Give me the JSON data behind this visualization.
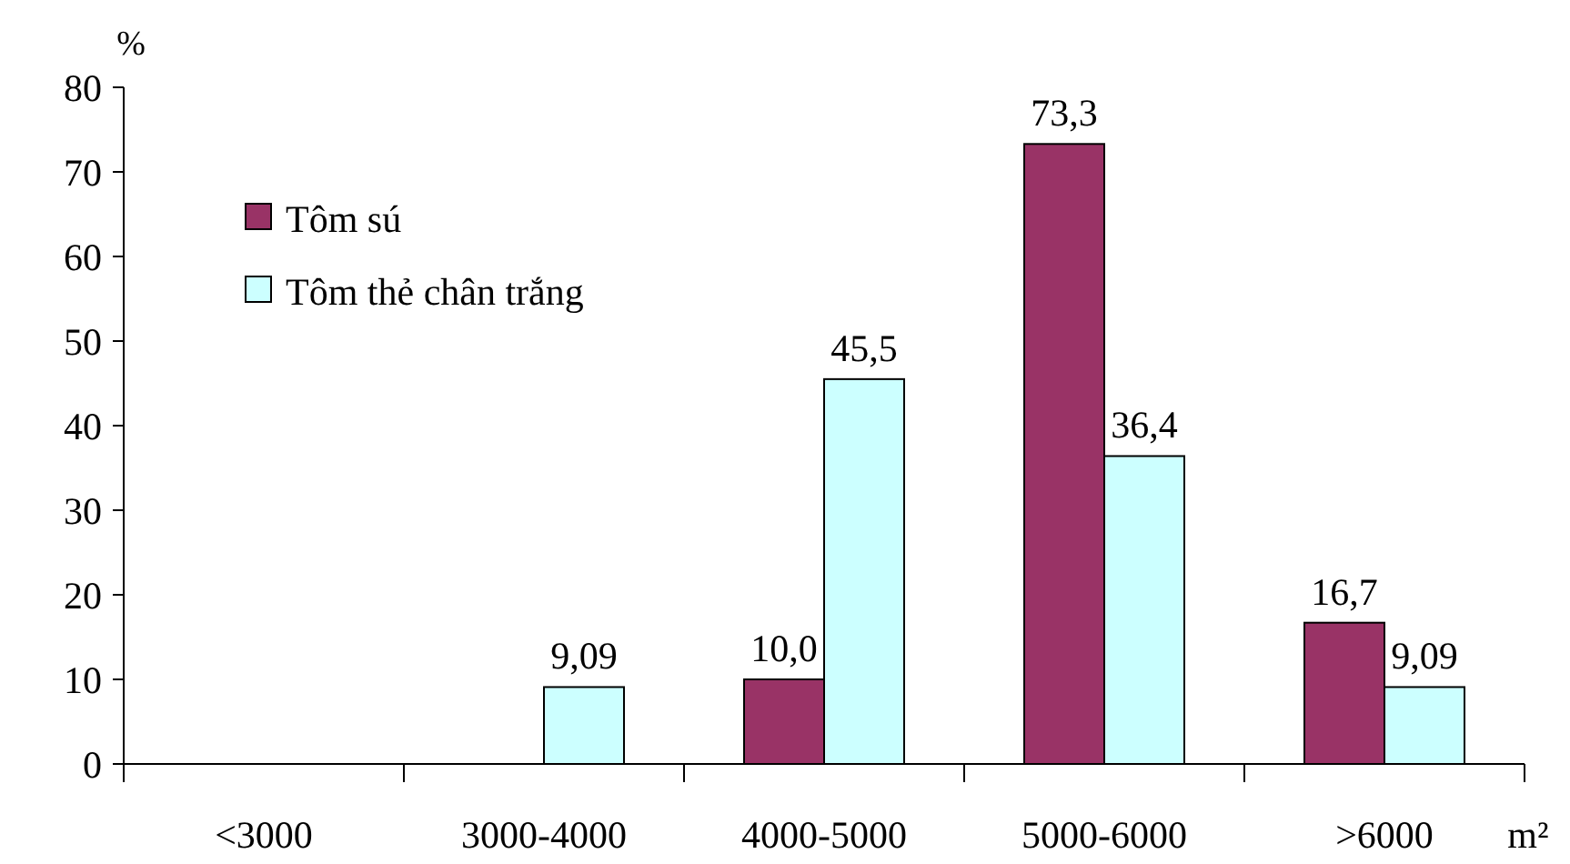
{
  "chart_data": {
    "type": "bar",
    "ylabel": "%",
    "xlabel": "m²",
    "categories": [
      "<3000",
      "3000-4000",
      "4000-5000",
      "5000-6000",
      ">6000"
    ],
    "series": [
      {
        "name": "Tôm sú",
        "color": "#993366",
        "values": [
          null,
          null,
          10.0,
          73.3,
          16.7
        ],
        "value_labels": [
          null,
          null,
          "10,0",
          "73,3",
          "16,7"
        ]
      },
      {
        "name": "Tôm thẻ chân trắng",
        "color": "#ccffff",
        "values": [
          null,
          9.09,
          45.5,
          36.4,
          9.09
        ],
        "value_labels": [
          null,
          "9,09",
          "45,5",
          "36,4",
          "9,09"
        ]
      }
    ],
    "ylim": [
      0,
      80
    ],
    "yticks": [
      0,
      10,
      20,
      30,
      40,
      50,
      60,
      70,
      80
    ],
    "legend": "top left",
    "grid": false
  }
}
